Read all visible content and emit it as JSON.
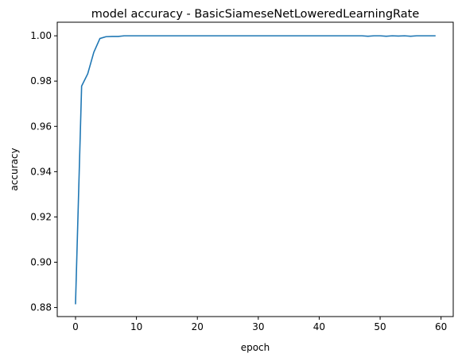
{
  "chart_data": {
    "type": "line",
    "title": "model accuracy - BasicSiameseNetLoweredLearningRate",
    "xlabel": "epoch",
    "ylabel": "accuracy",
    "xlim": [
      -3,
      62
    ],
    "ylim": [
      0.876,
      1.006
    ],
    "grid": false,
    "xticks": [
      0,
      10,
      20,
      30,
      40,
      50,
      60
    ],
    "xtick_labels": [
      "0",
      "10",
      "20",
      "30",
      "40",
      "50",
      "60"
    ],
    "yticks": [
      0.88,
      0.9,
      0.92,
      0.94,
      0.96,
      0.98,
      1.0
    ],
    "ytick_labels": [
      "0.88",
      "0.90",
      "0.92",
      "0.94",
      "0.96",
      "0.98",
      "1.00"
    ],
    "series": [
      {
        "color": "#1f77b4",
        "x": [
          0,
          1,
          2,
          3,
          4,
          5,
          6,
          7,
          8,
          9,
          10,
          11,
          12,
          13,
          14,
          15,
          16,
          17,
          18,
          19,
          20,
          21,
          22,
          23,
          24,
          25,
          26,
          27,
          28,
          29,
          30,
          31,
          32,
          33,
          34,
          35,
          36,
          37,
          38,
          39,
          40,
          41,
          42,
          43,
          44,
          45,
          46,
          47,
          48,
          49,
          50,
          51,
          52,
          53,
          54,
          55,
          56,
          57,
          58,
          59
        ],
        "y": [
          0.8817,
          0.9778,
          0.9832,
          0.9927,
          0.9988,
          0.9996,
          0.9997,
          0.9997,
          1.0,
          1.0,
          1.0,
          1.0,
          1.0,
          1.0,
          1.0,
          1.0,
          1.0,
          1.0,
          1.0,
          1.0,
          1.0,
          1.0,
          1.0,
          1.0,
          1.0,
          1.0,
          1.0,
          1.0,
          1.0,
          1.0,
          1.0,
          1.0,
          1.0,
          1.0,
          1.0,
          1.0,
          1.0,
          1.0,
          1.0,
          1.0,
          1.0,
          1.0,
          1.0,
          1.0,
          1.0,
          1.0,
          1.0,
          1.0,
          0.9998,
          1.0,
          1.0,
          0.9998,
          1.0,
          0.9999,
          1.0,
          0.9998,
          1.0,
          1.0,
          1.0,
          1.0
        ]
      }
    ]
  }
}
